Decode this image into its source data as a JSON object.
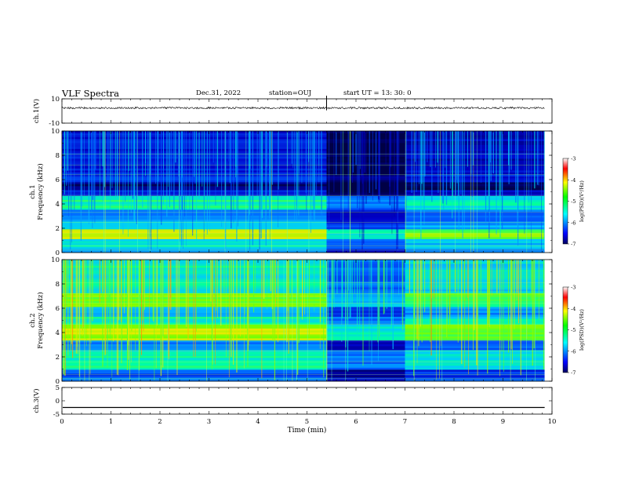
{
  "header": {
    "title": "VLF Spectra",
    "date": "Dec.31, 2022",
    "station": "station=OUJ",
    "start": "start  UT =   13: 30: 0"
  },
  "chart_data": [
    {
      "type": "line",
      "name": "ch1-waveform",
      "ylabel": "ch.1(V)",
      "ylim": [
        -10,
        10
      ],
      "y_ticks": [
        "10",
        "-10"
      ],
      "x_range_min": [
        0,
        10
      ],
      "baseline_v": 2.5,
      "amplitude_v": 0.8,
      "spikes_min": [
        5.4
      ]
    },
    {
      "type": "heatmap",
      "name": "ch1-spectrogram",
      "ylabel": "ch.1\nFrequency (kHz)",
      "ylim": [
        0,
        10
      ],
      "y_ticks": [
        "0",
        "2",
        "4",
        "6",
        "8",
        "10"
      ],
      "x_range_min": [
        0,
        10
      ],
      "data_end_min": 9.85,
      "colorbar": {
        "label": "log(PSD)(V²/Hz)",
        "range": [
          -7,
          -3
        ],
        "ticks": [
          "-3",
          "-4",
          "-5",
          "-6",
          "-7"
        ]
      },
      "quiet_interval_min": [
        5.4,
        7.0
      ],
      "colors": [
        "#000080",
        "#0000ff",
        "#00ffff",
        "#00ff00",
        "#ffff00",
        "#ff0000",
        "#ffffff"
      ]
    },
    {
      "type": "heatmap",
      "name": "ch2-spectrogram",
      "ylabel": "ch.2\nFrequency (kHz)",
      "ylim": [
        0,
        10
      ],
      "y_ticks": [
        "0",
        "2",
        "4",
        "6",
        "8",
        "10"
      ],
      "x_range_min": [
        0,
        10
      ],
      "data_end_min": 9.85,
      "colorbar": {
        "label": "log(PSD)(V²/Hz)",
        "range": [
          -7,
          -3
        ],
        "ticks": [
          "-3",
          "-4",
          "-5",
          "-6",
          "-7"
        ]
      },
      "quiet_interval_min": [
        5.4,
        7.0
      ]
    },
    {
      "type": "line",
      "name": "ch3-waveform",
      "ylabel": "ch.3(V)",
      "ylim": [
        -5,
        5
      ],
      "y_ticks": [
        "5",
        "0",
        "-5"
      ],
      "x_range_min": [
        0,
        10
      ],
      "baseline_v": -2.5
    }
  ],
  "xaxis": {
    "label": "Time (min)",
    "ticks": [
      "0",
      "1",
      "2",
      "3",
      "4",
      "5",
      "6",
      "7",
      "8",
      "9",
      "10"
    ]
  }
}
